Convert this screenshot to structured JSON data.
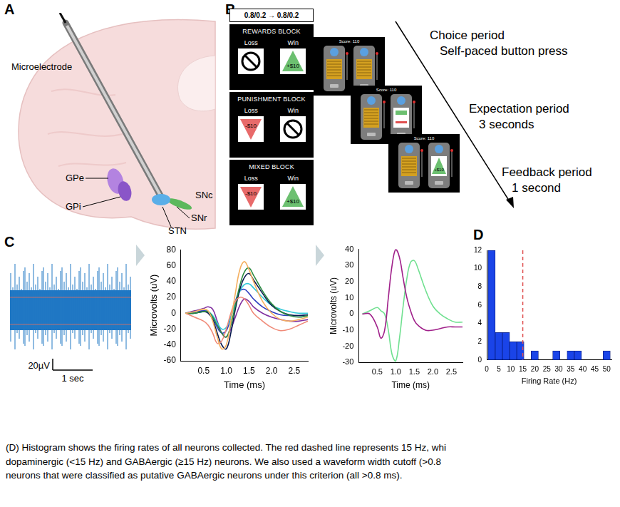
{
  "panel_letters": [
    "A",
    "B",
    "C",
    "D"
  ],
  "panel_a": {
    "labels": {
      "microelectrode": "Microelectrode",
      "gpe": "GPe",
      "gpi": "GPi",
      "snc": "SNc",
      "snr": "SNr",
      "stn": "STN"
    }
  },
  "panel_b": {
    "header": "0.8/0.2 → 0.8/0.2",
    "loss_label": "Loss",
    "win_label": "Win",
    "blocks": [
      {
        "title": "REWARDS BLOCK",
        "loss": null,
        "win": "+$10"
      },
      {
        "title": "PUNISHMENT BLOCK",
        "loss": "-$10",
        "win": null
      },
      {
        "title": "MIXED BLOCK",
        "loss": "-$10",
        "win": "+$10"
      }
    ],
    "screens": {
      "score": "Score: 110",
      "feedback": "+$10"
    },
    "periods": [
      {
        "name": "Choice period",
        "detail": "Self-paced button press"
      },
      {
        "name": "Expectation period",
        "detail": "3 seconds"
      },
      {
        "name": "Feedback period",
        "detail": "1 second"
      }
    ]
  },
  "panel_c_trace": {
    "scale_y": "20µV",
    "scale_x": "1 sec"
  },
  "chart_data": [
    {
      "type": "line",
      "x": [
        0.1,
        0.3,
        0.5,
        0.6,
        0.7,
        0.8,
        0.9,
        1.0,
        1.1,
        1.2,
        1.3,
        1.4,
        1.5,
        1.6,
        1.8,
        2.0,
        2.2,
        2.4,
        2.6,
        2.8
      ],
      "series": [
        {
          "color": "#f5b060",
          "values": [
            0,
            2,
            5,
            3,
            -10,
            -30,
            -45,
            -40,
            -10,
            25,
            55,
            65,
            55,
            40,
            15,
            0,
            -8,
            -10,
            -8,
            -5
          ]
        },
        {
          "color": "#f08a78",
          "values": [
            0,
            -5,
            -10,
            -15,
            -25,
            -38,
            -35,
            -20,
            0,
            15,
            20,
            18,
            10,
            0,
            -10,
            -18,
            -22,
            -20,
            -15,
            -10
          ]
        },
        {
          "color": "#2a8a40",
          "values": [
            0,
            0,
            2,
            2,
            -5,
            -15,
            -25,
            -30,
            -15,
            10,
            35,
            52,
            57,
            48,
            28,
            12,
            2,
            -3,
            -5,
            -3
          ]
        },
        {
          "color": "#0a1a50",
          "values": [
            0,
            0,
            2,
            0,
            -8,
            -25,
            -40,
            -45,
            -25,
            5,
            30,
            45,
            50,
            42,
            25,
            10,
            2,
            -2,
            -3,
            -2
          ]
        },
        {
          "color": "#30c8d8",
          "values": [
            0,
            0,
            2,
            2,
            -3,
            -12,
            -20,
            -18,
            -5,
            12,
            28,
            36,
            37,
            32,
            20,
            10,
            5,
            2,
            0,
            0
          ]
        },
        {
          "color": "#3040c0",
          "values": [
            0,
            2,
            3,
            2,
            -5,
            -18,
            -25,
            -22,
            -5,
            15,
            28,
            30,
            25,
            18,
            8,
            2,
            -2,
            -3,
            -3,
            -2
          ]
        },
        {
          "color": "#8030a0",
          "values": [
            0,
            3,
            6,
            8,
            5,
            -10,
            -25,
            -30,
            -20,
            -5,
            10,
            18,
            15,
            8,
            0,
            -5,
            -8,
            -10,
            -10,
            -8
          ]
        }
      ],
      "x_label": "Time (ms)",
      "y_label": "Microvolts (uV)",
      "xlim": [
        0,
        2.8
      ],
      "xticks": [
        0.5,
        {
          "value": 1,
          "label": "1.0"
        },
        1.5,
        {
          "value": 2,
          "label": "2.0"
        },
        2.5
      ],
      "ylim": [
        -60,
        80
      ],
      "yticks": [
        -60,
        -40,
        -20,
        0,
        20,
        40,
        60,
        80
      ],
      "grid": false
    },
    {
      "type": "line",
      "x": [
        0.1,
        0.3,
        0.5,
        0.6,
        0.7,
        0.8,
        0.9,
        1.0,
        1.1,
        1.2,
        1.3,
        1.4,
        1.5,
        1.6,
        1.8,
        2.0,
        2.2,
        2.4,
        2.6,
        2.8
      ],
      "series": [
        {
          "color": "#a0208a",
          "values": [
            0,
            0,
            -8,
            -15,
            -10,
            10,
            30,
            40,
            35,
            22,
            10,
            2,
            -4,
            -7,
            -10,
            -10,
            -9,
            -8,
            -8,
            -8
          ]
        },
        {
          "color": "#70e090",
          "values": [
            0,
            2,
            4,
            2,
            0,
            -10,
            -25,
            -29,
            -15,
            5,
            22,
            32,
            33,
            28,
            15,
            5,
            0,
            -3,
            -5,
            -5
          ]
        }
      ],
      "x_label": "Time (ms)",
      "y_label": "Microvolts (uV)",
      "xlim": [
        0,
        2.8
      ],
      "xticks": [
        0.5,
        {
          "value": 1,
          "label": "1.0"
        },
        1.5,
        {
          "value": 2,
          "label": "2.0"
        },
        2.5
      ],
      "ylim": [
        -30,
        40
      ],
      "yticks": [
        -30,
        -20,
        -10,
        0,
        10,
        20,
        30,
        40
      ],
      "grid": false
    },
    {
      "type": "histogram",
      "bins": [
        0.5,
        3.5,
        6.5,
        9.5,
        12.5,
        15.5,
        18.5,
        21.5,
        24.5,
        27.5,
        30.5,
        33.5,
        36.5,
        39.5,
        42.5,
        45.5,
        48.5,
        51.5
      ],
      "counts": [
        12,
        3,
        3,
        2,
        2,
        0,
        1,
        0,
        0,
        1,
        0,
        1,
        1,
        0,
        0,
        0,
        1
      ],
      "color": "#1a44e8",
      "reference_line": {
        "x": 15,
        "color": "#e05050",
        "line_style": "dashed"
      },
      "x_label": "Firing Rate (Hz)",
      "xlim": [
        0,
        52
      ],
      "xticks": [
        0,
        5,
        10,
        15,
        20,
        25,
        30,
        35,
        40,
        45,
        50
      ],
      "ylim": [
        0,
        12
      ],
      "yticks": [
        0,
        2,
        4,
        6,
        8,
        10,
        12
      ],
      "grid": false
    }
  ],
  "caption": [
    "(D) Histogram shows the firing rates of all neurons collected. The red dashed line represents 15 Hz, whi",
    "dopaminergic (<15 Hz) and GABAergic (≥15 Hz) neurons. We also used a waveform width cutoff (>0.8",
    "neurons that were classified as putative GABAergic neurons under this criterion (all >0.8 ms)."
  ]
}
